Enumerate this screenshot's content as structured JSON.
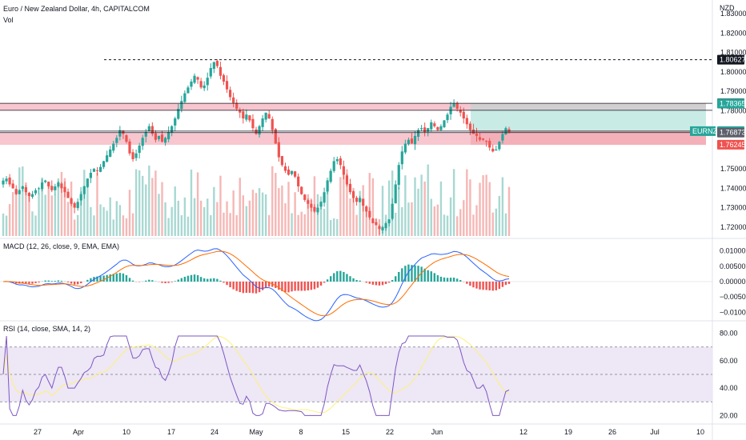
{
  "header": {
    "title": "Euro / New Zealand Dollar, 4h, CAPITALCOM",
    "vol_label": "Vol"
  },
  "currency": "NZD",
  "price_badges": [
    {
      "label": "",
      "value": "1.80627",
      "bg": "#131722",
      "fg": "#ffffff",
      "price": 1.80627
    },
    {
      "label": "",
      "value": "1.78380",
      "bg": "#131722",
      "fg": "#ffffff",
      "price": 1.7838
    },
    {
      "label": "",
      "value": "1.78365",
      "bg": "#26a69a",
      "fg": "#ffffff",
      "price": 1.78365
    },
    {
      "label": "EURNZD",
      "value": "1.76946",
      "bg": "#26a69a",
      "fg": "#ffffff",
      "price": 1.76946
    },
    {
      "label": "",
      "value": "1.76873",
      "bg": "#5d606b",
      "fg": "#ffffff",
      "price": 1.76873
    },
    {
      "label": "",
      "value": "1.76245",
      "bg": "#ef5350",
      "fg": "#ffffff",
      "price": 1.76245
    }
  ],
  "price_axis": [
    "1.83000",
    "1.82000",
    "1.81000",
    "1.80000",
    "1.79000",
    "1.78000",
    "1.75000",
    "1.74000",
    "1.73000",
    "1.72000"
  ],
  "macd_axis": [
    "0.01000",
    "0.00500",
    "0.00000",
    "−0.00500",
    "−0.01000"
  ],
  "rsi_axis": [
    "80.00",
    "60.00",
    "40.00",
    "20.00"
  ],
  "macd_label": "MACD (12, 26, close, 9, EMA, EMA)",
  "rsi_label": "RSI (14, close, SMA, 14, 2)",
  "time_axis": [
    "27",
    "Apr",
    "10",
    "17",
    "24",
    "May",
    "8",
    "15",
    "22",
    "Jun",
    "12",
    "19",
    "26",
    "Jul",
    "10"
  ],
  "colors": {
    "up": "#26a69a",
    "down": "#ef5350",
    "zone_red": "#f7c6cf",
    "zone_teal": "#c9ebe6",
    "zone_red_dark": "#f3aab3",
    "macd": "#2962ff",
    "signal": "#ff6d00",
    "rsi": "#7e57c2",
    "rsi_ma": "#fff176",
    "rsi_bg": "#ede7f6"
  },
  "chart_data": {
    "type": "candlestick",
    "title": "Euro / New Zealand Dollar, 4h, CAPITALCOM",
    "series_close": [
      1.744,
      1.745,
      1.742,
      1.74,
      1.737,
      1.739,
      1.741,
      1.738,
      1.736,
      1.737,
      1.739,
      1.74,
      1.743,
      1.744,
      1.741,
      1.739,
      1.741,
      1.743,
      1.74,
      1.738,
      1.735,
      1.732,
      1.73,
      1.733,
      1.737,
      1.741,
      1.745,
      1.748,
      1.75,
      1.749,
      1.751,
      1.754,
      1.757,
      1.76,
      1.763,
      1.766,
      1.77,
      1.768,
      1.764,
      1.758,
      1.755,
      1.758,
      1.762,
      1.766,
      1.769,
      1.772,
      1.768,
      1.765,
      1.767,
      1.764,
      1.766,
      1.769,
      1.772,
      1.776,
      1.781,
      1.785,
      1.789,
      1.792,
      1.795,
      1.798,
      1.796,
      1.792,
      1.793,
      1.797,
      1.802,
      1.805,
      1.803,
      1.798,
      1.795,
      1.791,
      1.787,
      1.784,
      1.781,
      1.779,
      1.776,
      1.778,
      1.775,
      1.771,
      1.768,
      1.772,
      1.776,
      1.779,
      1.776,
      1.77,
      1.763,
      1.756,
      1.752,
      1.749,
      1.747,
      1.749,
      1.746,
      1.741,
      1.737,
      1.734,
      1.732,
      1.73,
      1.728,
      1.73,
      1.733,
      1.738,
      1.744,
      1.749,
      1.754,
      1.755,
      1.752,
      1.747,
      1.742,
      1.738,
      1.735,
      1.733,
      1.735,
      1.731,
      1.728,
      1.725,
      1.722,
      1.721,
      1.719,
      1.72,
      1.722,
      1.724,
      1.732,
      1.742,
      1.752,
      1.759,
      1.763,
      1.765,
      1.763,
      1.767,
      1.77,
      1.771,
      1.769,
      1.771,
      1.774,
      1.772,
      1.77,
      1.772,
      1.775,
      1.778,
      1.782,
      1.784,
      1.781,
      1.779,
      1.776,
      1.773,
      1.77,
      1.768,
      1.767,
      1.765,
      1.765,
      1.764,
      1.761,
      1.759,
      1.76,
      1.764,
      1.768,
      1.771,
      1.769
    ],
    "price_levels": [
      1.80627,
      1.7838,
      1.78365,
      1.76946,
      1.76873,
      1.76245
    ],
    "ylim": [
      1.715,
      1.835
    ],
    "macd_ylim": [
      -0.012,
      0.012
    ],
    "rsi_ylim": [
      15,
      85
    ],
    "rsi_bands": [
      30,
      50,
      70
    ]
  }
}
